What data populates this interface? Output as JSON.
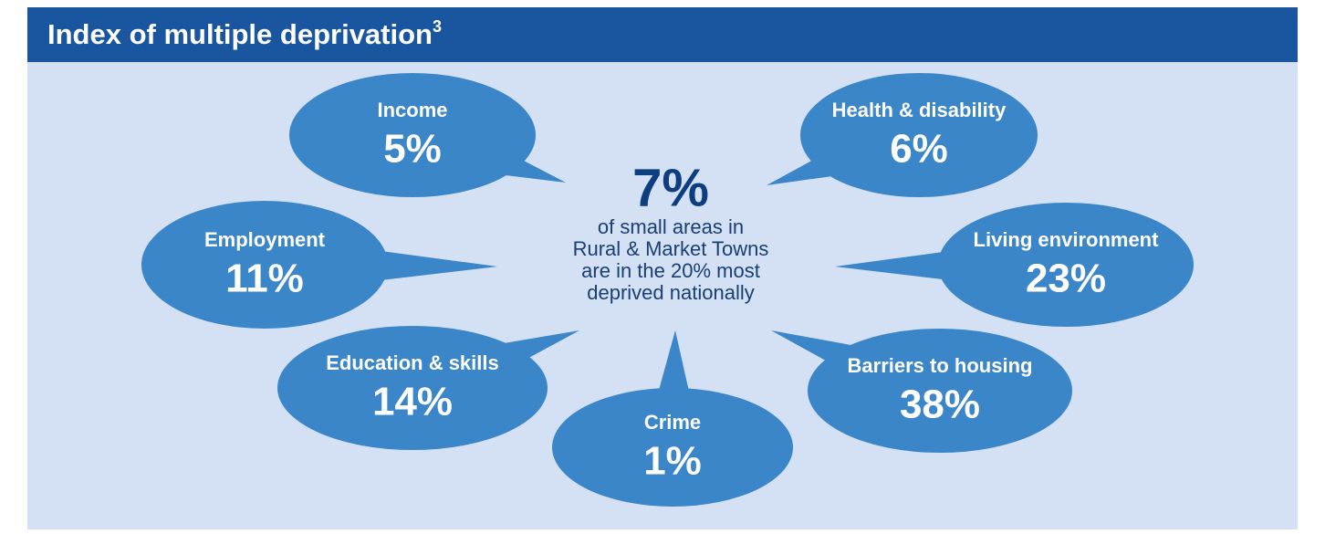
{
  "header": {
    "title": "Index of multiple deprivation",
    "superscript": "3"
  },
  "center": {
    "value": "7%",
    "lines": [
      "of small areas in",
      "Rural & Market Towns",
      "are in the 20% most",
      "deprived nationally"
    ]
  },
  "bubbles": [
    {
      "label": "Income",
      "value": "5%"
    },
    {
      "label": "Health & disability",
      "value": "6%"
    },
    {
      "label": "Employment",
      "value": "11%"
    },
    {
      "label": "Living environment",
      "value": "23%"
    },
    {
      "label": "Education & skills",
      "value": "14%"
    },
    {
      "label": "Barriers to housing",
      "value": "38%"
    },
    {
      "label": "Crime",
      "value": "1%"
    }
  ]
}
